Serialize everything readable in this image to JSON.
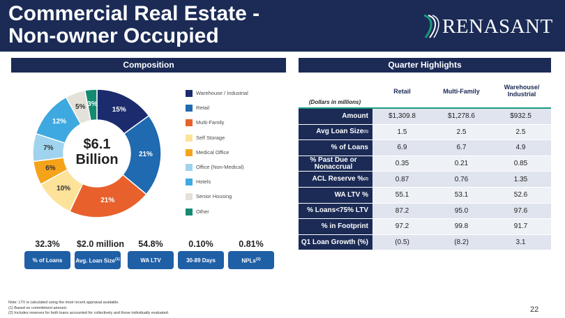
{
  "header": {
    "title_line1": "Commercial Real Estate -",
    "title_line2": "Non-owner Occupied",
    "logo_text": "RENASANT"
  },
  "composition": {
    "section_title": "Composition",
    "center_value": "$6.1",
    "center_unit": "Billion",
    "chart_data": {
      "type": "pie",
      "categories": [
        "Warehouse / Industrial",
        "Retail",
        "Multi-Family",
        "Self Storage",
        "Medical Office",
        "Office (Non-Medical)",
        "Hotels",
        "Senior Housing",
        "Other"
      ],
      "values": [
        15,
        21,
        21,
        10,
        6,
        7,
        12,
        5,
        3
      ],
      "data_labels": [
        "15%",
        "21%",
        "21%",
        "10%",
        "6%",
        "7%",
        "12%",
        "5%",
        "3%"
      ],
      "colors": [
        "#1b2b6e",
        "#1f6ab0",
        "#e8612c",
        "#fde29a",
        "#f5a31a",
        "#9fd3ee",
        "#3ea9e0",
        "#e4e1d8",
        "#148a72"
      ],
      "legend_position": "right"
    }
  },
  "stats": [
    {
      "value": "32.3%",
      "label": "% of Loans",
      "sup": ""
    },
    {
      "value": "$2.0 million",
      "label": "Avg. Loan Size",
      "sup": "(1)"
    },
    {
      "value": "54.8%",
      "label": "WA LTV",
      "sup": ""
    },
    {
      "value": "0.10%",
      "label": "30-89 Days",
      "sup": ""
    },
    {
      "value": "0.81%",
      "label": "NPLs",
      "sup": "(2)"
    }
  ],
  "highlights": {
    "section_title": "Quarter Highlights",
    "units_note": "(Dollars in millions)",
    "columns": [
      "Retail",
      "Multi-Family",
      "Warehouse/ Industrial"
    ],
    "rows": [
      {
        "label": "Amount",
        "sup": "",
        "values": [
          "$1,309.8",
          "$1,278.6",
          "$932.5"
        ]
      },
      {
        "label": "Avg Loan Size",
        "sup": "(1)",
        "values": [
          "1.5",
          "2.5",
          "2.5"
        ]
      },
      {
        "label": "% of Loans",
        "sup": "",
        "values": [
          "6.9",
          "6.7",
          "4.9"
        ]
      },
      {
        "label": "% Past Due or Nonaccrual",
        "sup": "",
        "values": [
          "0.35",
          "0.21",
          "0.85"
        ]
      },
      {
        "label": "ACL Reserve %",
        "sup": "(2)",
        "values": [
          "0.87",
          "0.76",
          "1.35"
        ]
      },
      {
        "label": "WA LTV %",
        "sup": "",
        "values": [
          "55.1",
          "53.1",
          "52.6"
        ]
      },
      {
        "label": "% Loans<75% LTV",
        "sup": "",
        "values": [
          "87.2",
          "95.0",
          "97.6"
        ]
      },
      {
        "label": "% in Footprint",
        "sup": "",
        "values": [
          "97.2",
          "99.8",
          "91.7"
        ]
      },
      {
        "label": "Q1 Loan Growth (%)",
        "sup": "",
        "values": [
          "(0.5)",
          "(8.2)",
          "3.1"
        ]
      }
    ]
  },
  "footnotes": [
    "Note: LTV is calculated using the most recent appraisal available.",
    "(1)      Based on commitment amount.",
    "(2)      Includes reserves for both loans accounted for collectively and those individually evaluated."
  ],
  "page_number": "22"
}
